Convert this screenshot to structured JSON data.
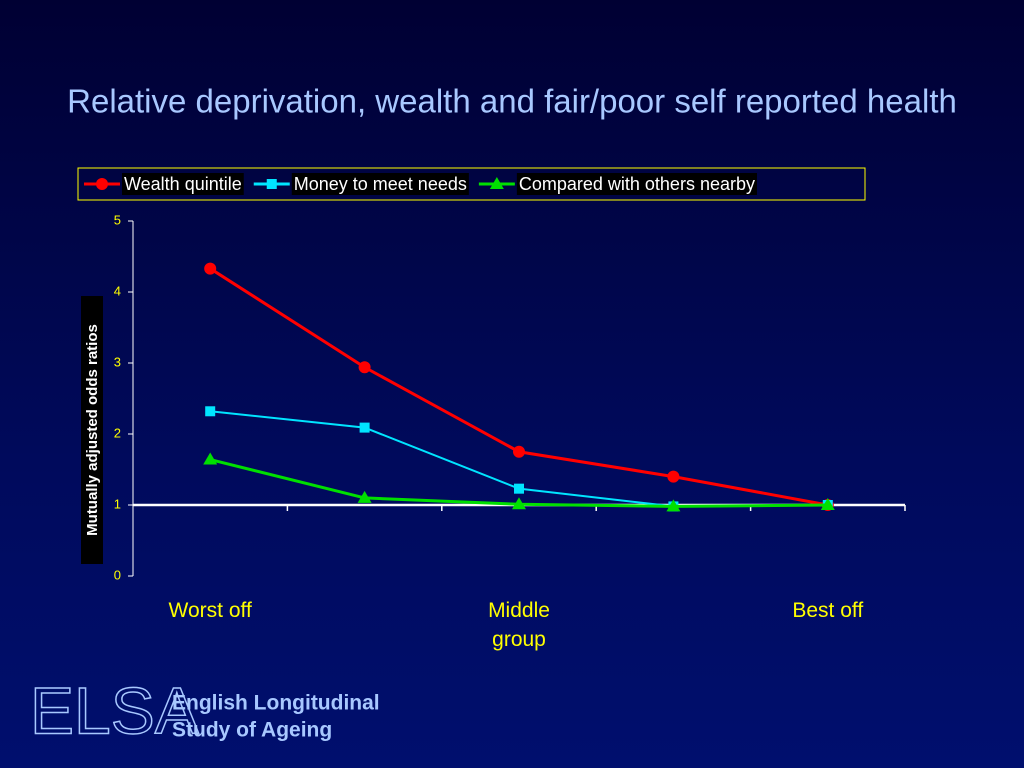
{
  "chart_data": {
    "type": "line",
    "title": "Relative deprivation, wealth and fair/poor self reported health",
    "y_label": "Mutually adjusted odds ratios",
    "categories": [
      "Worst off",
      null,
      "Middle group",
      null,
      "Best off"
    ],
    "series": [
      {
        "name": "Wealth quintile",
        "color": "#ff0000",
        "marker": "circle",
        "values": [
          4.33,
          2.94,
          1.75,
          1.4,
          1.0
        ]
      },
      {
        "name": "Money to meet needs",
        "color": "#00e5ff",
        "marker": "square",
        "values": [
          2.32,
          2.09,
          1.23,
          0.98,
          1.0
        ]
      },
      {
        "name": "Compared with others nearby",
        "color": "#00e000",
        "marker": "triangle",
        "values": [
          1.64,
          1.1,
          1.01,
          0.98,
          1.0
        ]
      }
    ],
    "ylim": [
      0,
      5
    ],
    "yticks": [
      0,
      1,
      2,
      3,
      4,
      5
    ],
    "x_axis_at": 1,
    "legend": "top"
  },
  "logo": {
    "mark": "ELSA",
    "line1": "English Longitudinal",
    "line2": "Study of Ageing"
  }
}
